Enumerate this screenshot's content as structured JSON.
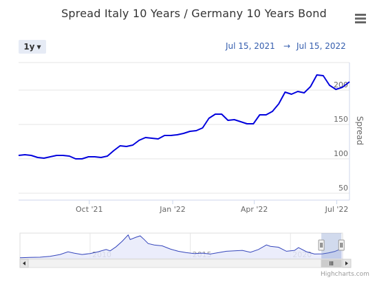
{
  "title": "Spread Italy 10 Years / Germany 10 Years Bond",
  "range_selector": {
    "label": "1y"
  },
  "date_range": {
    "from": "Jul 15, 2021",
    "arrow": "→",
    "to": "Jul 15, 2022"
  },
  "menu_icon": "hamburger-menu-icon",
  "credits": "Highcharts.com",
  "colors": {
    "line": "#0000dd",
    "grid": "#e6e6e6",
    "nav_fill": "#e6e8fa",
    "nav_line": "#3344bb",
    "nav_mask": "rgba(102,133,194,0.3)"
  },
  "chart_data": {
    "type": "line",
    "ylabel": "Spread",
    "ylim": [
      40,
      240
    ],
    "yticks": [
      50,
      100,
      150,
      200
    ],
    "x_ticks": [
      "Oct '21",
      "Jan '22",
      "Apr '22",
      "Jul '22"
    ],
    "x_tick_dates": [
      "2021-10-01",
      "2022-01-01",
      "2022-04-01",
      "2022-07-01"
    ],
    "x_range": [
      "2021-07-15",
      "2022-07-15"
    ],
    "series": [
      {
        "values": [
          [
            "2021-07-15",
            105
          ],
          [
            "2021-07-22",
            106
          ],
          [
            "2021-07-29",
            105
          ],
          [
            "2021-08-05",
            102
          ],
          [
            "2021-08-12",
            101
          ],
          [
            "2021-08-19",
            103
          ],
          [
            "2021-08-26",
            105
          ],
          [
            "2021-09-02",
            105
          ],
          [
            "2021-09-09",
            104
          ],
          [
            "2021-09-16",
            100
          ],
          [
            "2021-09-23",
            100
          ],
          [
            "2021-09-30",
            103
          ],
          [
            "2021-10-07",
            103
          ],
          [
            "2021-10-14",
            102
          ],
          [
            "2021-10-21",
            104
          ],
          [
            "2021-10-28",
            112
          ],
          [
            "2021-11-04",
            119
          ],
          [
            "2021-11-11",
            118
          ],
          [
            "2021-11-18",
            120
          ],
          [
            "2021-11-25",
            127
          ],
          [
            "2021-12-02",
            131
          ],
          [
            "2021-12-09",
            130
          ],
          [
            "2021-12-16",
            129
          ],
          [
            "2021-12-23",
            134
          ],
          [
            "2021-12-30",
            134
          ],
          [
            "2022-01-06",
            135
          ],
          [
            "2022-01-13",
            137
          ],
          [
            "2022-01-20",
            140
          ],
          [
            "2022-01-27",
            141
          ],
          [
            "2022-02-03",
            145
          ],
          [
            "2022-02-10",
            159
          ],
          [
            "2022-02-17",
            165
          ],
          [
            "2022-02-24",
            165
          ],
          [
            "2022-03-03",
            156
          ],
          [
            "2022-03-10",
            157
          ],
          [
            "2022-03-17",
            154
          ],
          [
            "2022-03-24",
            151
          ],
          [
            "2022-03-31",
            151
          ],
          [
            "2022-04-07",
            164
          ],
          [
            "2022-04-14",
            164
          ],
          [
            "2022-04-21",
            169
          ],
          [
            "2022-04-28",
            180
          ],
          [
            "2022-05-05",
            197
          ],
          [
            "2022-05-12",
            194
          ],
          [
            "2022-05-19",
            198
          ],
          [
            "2022-05-26",
            196
          ],
          [
            "2022-06-02",
            205
          ],
          [
            "2022-06-09",
            222
          ],
          [
            "2022-06-16",
            221
          ],
          [
            "2022-06-23",
            207
          ],
          [
            "2022-06-30",
            201
          ],
          [
            "2022-07-07",
            204
          ],
          [
            "2022-07-15",
            212
          ]
        ]
      }
    ],
    "navigator": {
      "x_labels": [
        "2010",
        "2015",
        "2020"
      ],
      "x_range_years": [
        2006.5,
        2022.6
      ],
      "y_range": [
        0,
        560
      ],
      "values": [
        [
          2006.5,
          20
        ],
        [
          2007.0,
          25
        ],
        [
          2007.5,
          30
        ],
        [
          2008.0,
          50
        ],
        [
          2008.5,
          90
        ],
        [
          2008.9,
          150
        ],
        [
          2009.2,
          120
        ],
        [
          2009.6,
          90
        ],
        [
          2010.0,
          110
        ],
        [
          2010.4,
          150
        ],
        [
          2010.8,
          200
        ],
        [
          2011.0,
          170
        ],
        [
          2011.3,
          260
        ],
        [
          2011.6,
          380
        ],
        [
          2011.9,
          520
        ],
        [
          2012.0,
          420
        ],
        [
          2012.3,
          470
        ],
        [
          2012.5,
          500
        ],
        [
          2012.7,
          420
        ],
        [
          2012.9,
          330
        ],
        [
          2013.2,
          300
        ],
        [
          2013.6,
          280
        ],
        [
          2014.0,
          210
        ],
        [
          2014.4,
          160
        ],
        [
          2014.8,
          130
        ],
        [
          2015.2,
          110
        ],
        [
          2015.6,
          120
        ],
        [
          2016.0,
          100
        ],
        [
          2016.4,
          130
        ],
        [
          2016.8,
          160
        ],
        [
          2017.2,
          170
        ],
        [
          2017.6,
          180
        ],
        [
          2018.0,
          140
        ],
        [
          2018.4,
          200
        ],
        [
          2018.8,
          300
        ],
        [
          2019.0,
          270
        ],
        [
          2019.4,
          250
        ],
        [
          2019.8,
          160
        ],
        [
          2020.2,
          180
        ],
        [
          2020.4,
          240
        ],
        [
          2020.8,
          150
        ],
        [
          2021.2,
          100
        ],
        [
          2021.6,
          105
        ],
        [
          2021.9,
          125
        ],
        [
          2022.2,
          155
        ],
        [
          2022.45,
          200
        ],
        [
          2022.6,
          212
        ]
      ]
    }
  }
}
